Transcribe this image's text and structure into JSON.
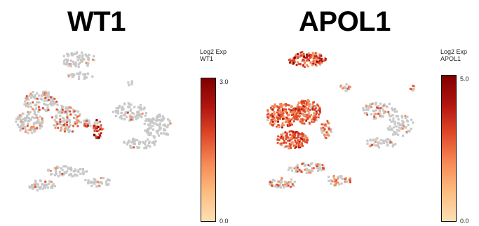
{
  "chart_data": [
    {
      "type": "scatter",
      "title": "WT1",
      "legend_title": [
        "Log2 Exp",
        "WT1"
      ],
      "legend_placement": "right",
      "color_range": [
        0.0,
        3.0
      ],
      "colorbar_labels": [
        "3.0",
        "0.0"
      ],
      "colormap": [
        "#fde0b2",
        "#fcbd80",
        "#f78a55",
        "#e04a2a",
        "#b2150f",
        "#7f0000"
      ],
      "background_color": "#c8c8c8",
      "grid": false,
      "clusters": [
        {
          "x": 112,
          "y": 85,
          "w": 50,
          "h": 22,
          "n": 70,
          "expr": 0.08,
          "hi": 0.3
        },
        {
          "x": 115,
          "y": 108,
          "w": 38,
          "h": 10,
          "n": 25,
          "expr": 0.05,
          "hi": 0.3
        },
        {
          "x": 58,
          "y": 145,
          "w": 52,
          "h": 30,
          "n": 110,
          "expr": 0.22,
          "hi": 0.5
        },
        {
          "x": 42,
          "y": 175,
          "w": 40,
          "h": 30,
          "n": 100,
          "expr": 0.22,
          "hi": 0.5
        },
        {
          "x": 95,
          "y": 170,
          "w": 42,
          "h": 40,
          "n": 120,
          "expr": 0.25,
          "hi": 0.5
        },
        {
          "x": 140,
          "y": 185,
          "w": 14,
          "h": 28,
          "n": 45,
          "expr": 0.85,
          "hi": 0.95
        },
        {
          "x": 125,
          "y": 175,
          "w": 12,
          "h": 15,
          "n": 20,
          "expr": 0.4,
          "hi": 0.6
        },
        {
          "x": 185,
          "y": 160,
          "w": 50,
          "h": 25,
          "n": 80,
          "expr": 0.03,
          "hi": 0.4
        },
        {
          "x": 225,
          "y": 180,
          "w": 40,
          "h": 35,
          "n": 90,
          "expr": 0.03,
          "hi": 0.4
        },
        {
          "x": 200,
          "y": 205,
          "w": 50,
          "h": 15,
          "n": 50,
          "expr": 0.02,
          "hi": 0.4
        },
        {
          "x": 95,
          "y": 245,
          "w": 60,
          "h": 15,
          "n": 60,
          "expr": 0.05,
          "hi": 0.4
        },
        {
          "x": 60,
          "y": 265,
          "w": 40,
          "h": 15,
          "n": 50,
          "expr": 0.05,
          "hi": 0.4
        },
        {
          "x": 140,
          "y": 260,
          "w": 40,
          "h": 15,
          "n": 40,
          "expr": 0.1,
          "hi": 0.5
        },
        {
          "x": 185,
          "y": 118,
          "w": 8,
          "h": 8,
          "n": 5,
          "expr": 0.2,
          "hi": 0.5
        }
      ]
    },
    {
      "type": "scatter",
      "title": "APOL1",
      "legend_title": [
        "Log2 Exp",
        "APOL1"
      ],
      "legend_placement": "right",
      "color_range": [
        0.0,
        5.0
      ],
      "colorbar_labels": [
        "5.0",
        "0.0"
      ],
      "colormap": [
        "#fde0b2",
        "#fcbd80",
        "#f78a55",
        "#e04a2a",
        "#b2150f",
        "#7f0000"
      ],
      "background_color": "#c8c8c8",
      "grid": false,
      "clusters": [
        {
          "x": 95,
          "y": 85,
          "w": 55,
          "h": 22,
          "n": 130,
          "expr": 0.92,
          "hi": 0.9
        },
        {
          "x": 60,
          "y": 165,
          "w": 45,
          "h": 35,
          "n": 200,
          "expr": 0.9,
          "hi": 0.6
        },
        {
          "x": 95,
          "y": 160,
          "w": 40,
          "h": 35,
          "n": 180,
          "expr": 0.9,
          "hi": 0.6
        },
        {
          "x": 75,
          "y": 200,
          "w": 45,
          "h": 25,
          "n": 160,
          "expr": 0.9,
          "hi": 0.6
        },
        {
          "x": 123,
          "y": 185,
          "w": 15,
          "h": 25,
          "n": 40,
          "expr": 0.6,
          "hi": 0.5
        },
        {
          "x": 150,
          "y": 125,
          "w": 15,
          "h": 10,
          "n": 15,
          "expr": 0.5,
          "hi": 0.4
        },
        {
          "x": 200,
          "y": 158,
          "w": 50,
          "h": 25,
          "n": 70,
          "expr": 0.12,
          "hi": 0.4
        },
        {
          "x": 230,
          "y": 180,
          "w": 40,
          "h": 30,
          "n": 60,
          "expr": 0.12,
          "hi": 0.4
        },
        {
          "x": 200,
          "y": 205,
          "w": 45,
          "h": 15,
          "n": 40,
          "expr": 0.1,
          "hi": 0.4
        },
        {
          "x": 95,
          "y": 240,
          "w": 55,
          "h": 15,
          "n": 60,
          "expr": 0.35,
          "hi": 0.4
        },
        {
          "x": 60,
          "y": 262,
          "w": 40,
          "h": 15,
          "n": 50,
          "expr": 0.3,
          "hi": 0.4
        },
        {
          "x": 140,
          "y": 258,
          "w": 40,
          "h": 15,
          "n": 40,
          "expr": 0.4,
          "hi": 0.4
        },
        {
          "x": 245,
          "y": 125,
          "w": 8,
          "h": 10,
          "n": 6,
          "expr": 0.6,
          "hi": 0.4
        }
      ]
    }
  ]
}
